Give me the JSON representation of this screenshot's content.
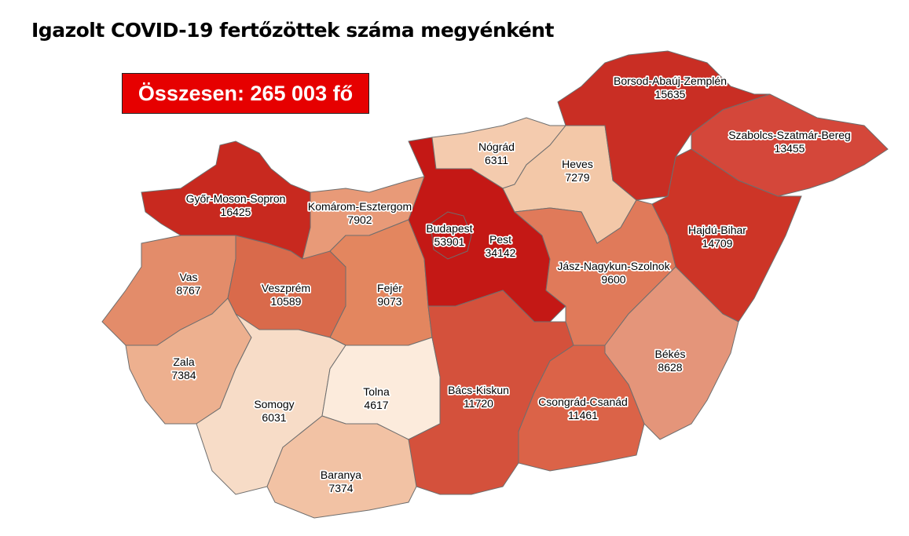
{
  "title": "Igazolt COVID-19 fertőzöttek száma megyénként",
  "total_label": "Összesen: 265 003 fő",
  "counties": [
    {
      "id": "gyor",
      "name": "Győr-Moson-Sopron",
      "value": "16425",
      "color": "#c8291f"
    },
    {
      "id": "komarom",
      "name": "Komárom-Esztergom",
      "value": "7902",
      "color": "#e89a78"
    },
    {
      "id": "vas",
      "name": "Vas",
      "value": "8767",
      "color": "#e38c6a"
    },
    {
      "id": "veszprem",
      "name": "Veszprém",
      "value": "10589",
      "color": "#d96a4b"
    },
    {
      "id": "fejer",
      "name": "Fejér",
      "value": "9073",
      "color": "#e3865f"
    },
    {
      "id": "zala",
      "name": "Zala",
      "value": "7384",
      "color": "#edb08f"
    },
    {
      "id": "somogy",
      "name": "Somogy",
      "value": "6031",
      "color": "#f7dcc7"
    },
    {
      "id": "tolna",
      "name": "Tolna",
      "value": "4617",
      "color": "#fcebdc"
    },
    {
      "id": "baranya",
      "name": "Baranya",
      "value": "7374",
      "color": "#f2c2a4"
    },
    {
      "id": "pest",
      "name": "Pest",
      "value": "34142",
      "color": "#c41815"
    },
    {
      "id": "budapest",
      "name": "Budapest",
      "value": "53901",
      "color": "#c41815"
    },
    {
      "id": "nograd",
      "name": "Nógrád",
      "value": "6311",
      "color": "#f4cbae"
    },
    {
      "id": "heves",
      "name": "Heves",
      "value": "7279",
      "color": "#f3c8a8"
    },
    {
      "id": "borsod",
      "name": "Borsod-Abaúj-Zemplén",
      "value": "15635",
      "color": "#c92e24"
    },
    {
      "id": "szabolcs",
      "name": "Szabolcs-Szatmár-Bereg",
      "value": "13455",
      "color": "#d4473a"
    },
    {
      "id": "hajdu",
      "name": "Hajdú-Bihar",
      "value": "14709",
      "color": "#cd3527"
    },
    {
      "id": "jasz",
      "name": "Jász-Nagykun-Szolnok",
      "value": "9600",
      "color": "#e07a5a"
    },
    {
      "id": "bekes",
      "name": "Békés",
      "value": "8628",
      "color": "#e4957a"
    },
    {
      "id": "bacs",
      "name": "Bács-Kiskun",
      "value": "11720",
      "color": "#d4513c"
    },
    {
      "id": "csongrad",
      "name": "Csongrád-Csanád",
      "value": "11461",
      "color": "#db6348"
    }
  ]
}
